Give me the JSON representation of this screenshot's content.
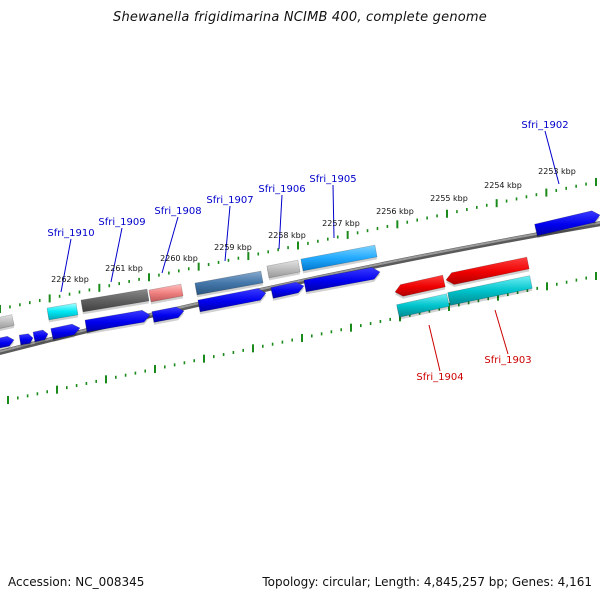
{
  "title": "Shewanella frigidimarina NCIMB 400, complete genome",
  "accession": "Accession: NC_008345",
  "summary": "Topology: circular; Length: 4,845,257 bp; Genes: 4,161",
  "scale_labels": [
    {
      "label": "2262 kbp",
      "kbp": 2262
    },
    {
      "label": "2261 kbp",
      "kbp": 2261
    },
    {
      "label": "2260 kbp",
      "kbp": 2260
    },
    {
      "label": "2259 kbp",
      "kbp": 2259
    },
    {
      "label": "2258 kbp",
      "kbp": 2258
    },
    {
      "label": "2257 kbp",
      "kbp": 2257
    },
    {
      "label": "2256 kbp",
      "kbp": 2256
    },
    {
      "label": "2255 kbp",
      "kbp": 2255
    },
    {
      "label": "2254 kbp",
      "kbp": 2254
    },
    {
      "label": "2253 kbp",
      "kbp": 2253
    }
  ],
  "gene_labels": [
    {
      "name": "Sfri_1910",
      "color": "#0000cc"
    },
    {
      "name": "Sfri_1909",
      "color": "#0000cc"
    },
    {
      "name": "Sfri_1908",
      "color": "#0000cc"
    },
    {
      "name": "Sfri_1907",
      "color": "#0000cc"
    },
    {
      "name": "Sfri_1906",
      "color": "#0000cc"
    },
    {
      "name": "Sfri_1905",
      "color": "#0000cc"
    },
    {
      "name": "Sfri_1902",
      "color": "#0000cc"
    },
    {
      "name": "Sfri_1904",
      "color": "#cc0000"
    },
    {
      "name": "Sfri_1903",
      "color": "#cc0000"
    }
  ],
  "colors": {
    "backbone": "#808080",
    "tick": "#1a8a1a",
    "cds_forward": "#0000ee",
    "cds_reverse": "#ee0000",
    "cyan": "#00ccdd",
    "sky": "#22aaff",
    "dark_gray": "#606060",
    "light_gray": "#b8b8b8",
    "pink": "#f08080",
    "steel": "#4477aa",
    "teal": "#00b8c0"
  }
}
